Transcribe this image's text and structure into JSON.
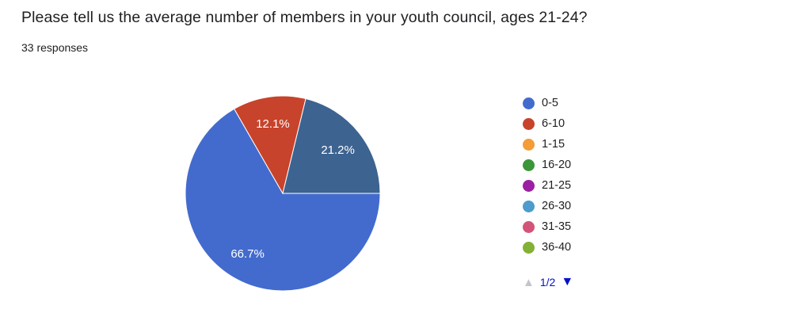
{
  "header": {
    "title": "Please tell us the average number of members in your youth council, ages 21-24?",
    "responses": "33 responses"
  },
  "chart_data": {
    "type": "pie",
    "title": "Please tell us the average number of members in your youth council, ages 21-24?",
    "subtitle": "33 responses",
    "start_angle_deg": 90,
    "legend_position": "right",
    "slices": [
      {
        "legend": "0-5",
        "value": 66.7,
        "label": "66.7%",
        "color": "#436BCE"
      },
      {
        "legend": "6-10",
        "value": 12.1,
        "label": "12.1%",
        "color": "#C8432B"
      },
      {
        "legend": "",
        "value": 21.2,
        "label": "21.2%",
        "color": "#3D6390"
      }
    ]
  },
  "legend": {
    "items": [
      {
        "label": "0-5",
        "color": "#436BCE"
      },
      {
        "label": "6-10",
        "color": "#C8432B"
      },
      {
        "label": "1-15",
        "color": "#F39C38"
      },
      {
        "label": "16-20",
        "color": "#3C9639"
      },
      {
        "label": "21-25",
        "color": "#9C20A2"
      },
      {
        "label": "26-30",
        "color": "#4E9BCD"
      },
      {
        "label": "31-35",
        "color": "#D25479"
      },
      {
        "label": "36-40",
        "color": "#82B135"
      }
    ],
    "pagination": {
      "up_icon": "▲",
      "down_icon": "▼",
      "label": "1/2",
      "active_color": "#0011CC",
      "disabled_color": "#C5C4C8"
    }
  }
}
